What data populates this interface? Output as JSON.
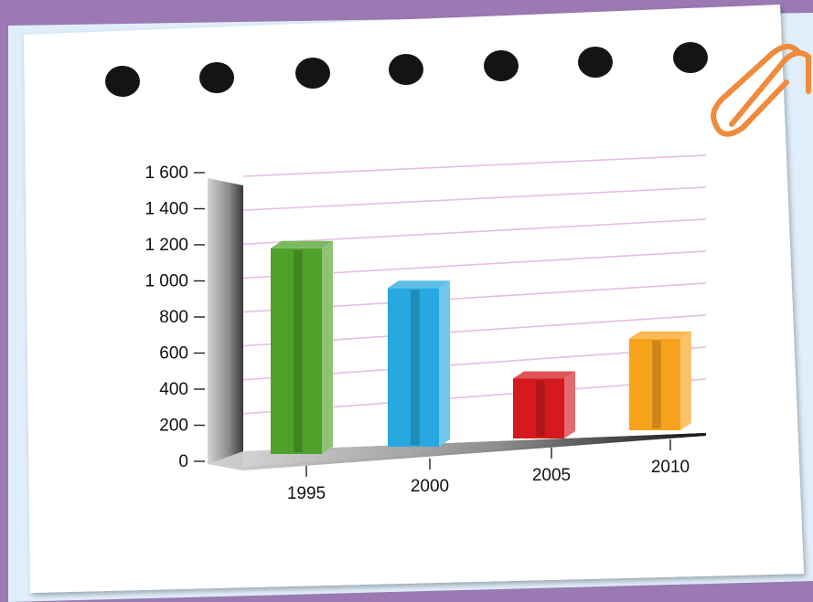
{
  "colors": {
    "frame": "#9c79b3",
    "sheet_margin": "#dfeefa",
    "paper": "#ffffff",
    "gridline": "#e6bde3",
    "paperclip": "#f08a3c",
    "punch_hole": "#141414"
  },
  "icons": {
    "paperclip": "paperclip-icon",
    "punch_hole": "punch-hole-icon"
  },
  "chart_data": {
    "type": "bar",
    "categories": [
      "1995",
      "2000",
      "2005",
      "2010"
    ],
    "values": [
      1350,
      1050,
      400,
      620
    ],
    "ylim": [
      0,
      1600
    ],
    "yticks": [
      0,
      200,
      400,
      600,
      800,
      1000,
      1200,
      1400,
      1600
    ],
    "ytick_labels": [
      "0",
      "200",
      "400",
      "600",
      "800",
      "1 000",
      "1 200",
      "1 400",
      "1 600"
    ],
    "bar_colors": [
      "#4ea22a",
      "#27a8e0",
      "#d5191e",
      "#f7a21b"
    ],
    "grid": true,
    "legend": "none",
    "style": "3d-perspective"
  }
}
